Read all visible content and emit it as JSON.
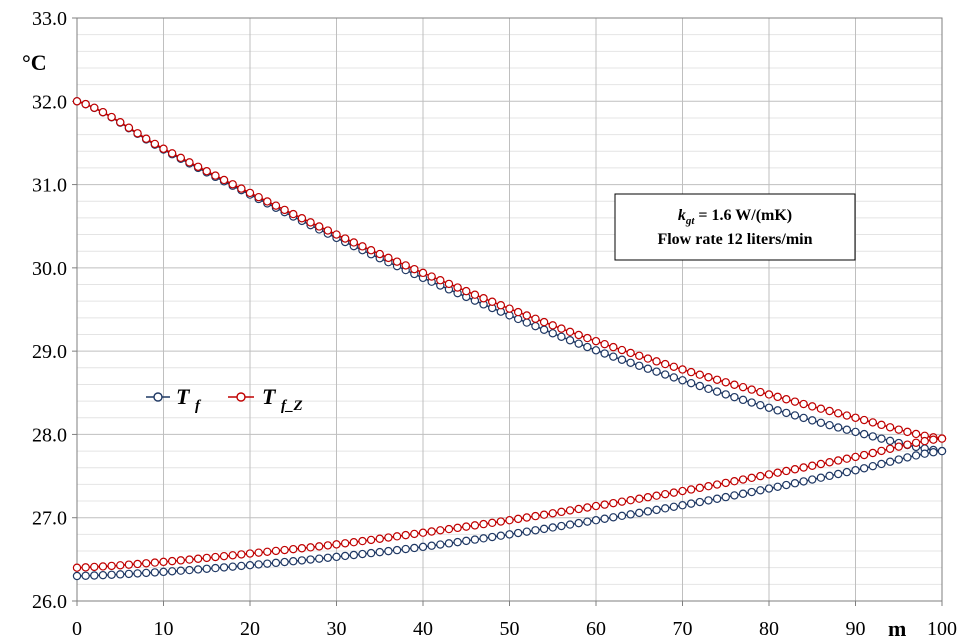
{
  "chart_data": {
    "type": "line",
    "x_unit": "m",
    "y_unit": "°C",
    "xlim": [
      0,
      100
    ],
    "ylim": [
      26.0,
      33.0
    ],
    "x_ticks": [
      0,
      10,
      20,
      30,
      40,
      50,
      60,
      70,
      80,
      90,
      100
    ],
    "y_ticks": [
      26.0,
      27.0,
      28.0,
      29.0,
      30.0,
      31.0,
      32.0,
      33.0
    ],
    "x_tick_labels": [
      "0",
      "10",
      "20",
      "30",
      "40",
      "50",
      "60",
      "70",
      "80",
      "90",
      "100"
    ],
    "y_tick_labels": [
      "26.0",
      "27.0",
      "28.0",
      "29.0",
      "30.0",
      "31.0",
      "32.0",
      "33.0"
    ],
    "grid": true,
    "legend_position": "left-middle",
    "annotation": {
      "line1_main": "k",
      "line1_sub": "gt",
      "line1_rest": " = 1.6 W/(mK)",
      "line2": "Flow rate 12 liters/min"
    },
    "series": [
      {
        "name": "T_f",
        "legend_main": "T",
        "legend_sub": "f",
        "color": "#1f3864",
        "marker": "open-circle",
        "branches": [
          {
            "x": [
              0,
              10,
              20,
              30,
              40,
              50,
              60,
              70,
              80,
              90,
              100
            ],
            "y": [
              32.0,
              31.42,
              30.88,
              30.36,
              29.88,
              29.43,
              29.01,
              28.65,
              28.32,
              28.03,
              27.8
            ]
          },
          {
            "x": [
              0,
              10,
              20,
              30,
              40,
              50,
              60,
              70,
              80,
              90,
              100
            ],
            "y": [
              26.3,
              26.35,
              26.43,
              26.53,
              26.65,
              26.8,
              26.97,
              27.15,
              27.35,
              27.57,
              27.8
            ]
          }
        ]
      },
      {
        "name": "T_f_Z",
        "legend_main": "T",
        "legend_sub": "f_Z",
        "color": "#c00000",
        "marker": "open-circle",
        "branches": [
          {
            "x": [
              0,
              10,
              20,
              30,
              40,
              50,
              60,
              70,
              80,
              90,
              100
            ],
            "y": [
              32.0,
              31.43,
              30.9,
              30.4,
              29.94,
              29.51,
              29.12,
              28.78,
              28.48,
              28.2,
              27.95
            ]
          },
          {
            "x": [
              0,
              10,
              20,
              30,
              40,
              50,
              60,
              70,
              80,
              90,
              100
            ],
            "y": [
              26.4,
              26.47,
              26.57,
              26.68,
              26.82,
              26.97,
              27.14,
              27.32,
              27.52,
              27.73,
              27.95
            ]
          }
        ]
      }
    ]
  }
}
